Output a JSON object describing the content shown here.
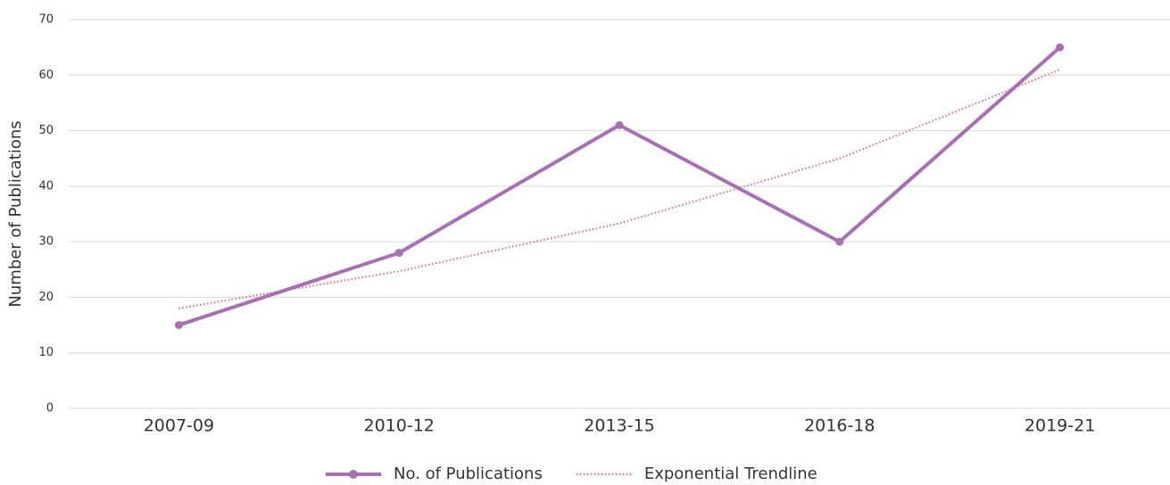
{
  "chart_data": {
    "type": "line",
    "y_label": "Number of Publications",
    "categories": [
      "2007-09",
      "2010-12",
      "2013-15",
      "2016-18",
      "2019-21"
    ],
    "series": [
      {
        "name": "No. of Publications",
        "color": "#a86fb5",
        "style": "solid",
        "markers": true,
        "values": [
          15,
          28,
          51,
          30,
          65
        ]
      },
      {
        "name": "Exponential Trendline",
        "color": "#e0609a",
        "style": "dotted",
        "markers": false,
        "values": [
          18,
          24.7,
          33.3,
          45,
          61
        ]
      }
    ],
    "ylim": [
      0,
      70
    ],
    "yticks": [
      0,
      10,
      20,
      30,
      40,
      50,
      60,
      70
    ],
    "grid": true,
    "legend": "bottom"
  }
}
